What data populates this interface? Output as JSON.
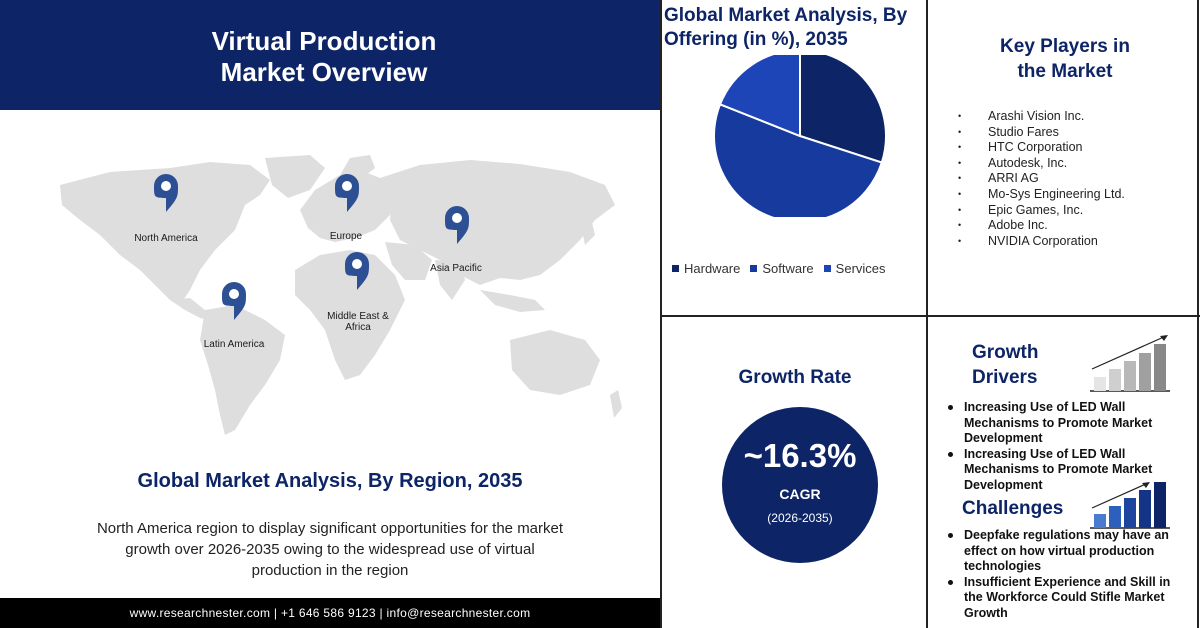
{
  "header": {
    "title_line1": "Virtual Production",
    "title_line2": "Market Overview"
  },
  "map": {
    "pins": [
      {
        "label": "North America"
      },
      {
        "label": "Europe"
      },
      {
        "label": "Asia Pacific"
      },
      {
        "label": "Middle East & Africa"
      },
      {
        "label": "Latin America"
      }
    ]
  },
  "region": {
    "title": "Global Market Analysis, By Region, 2035",
    "description": "North America region to display significant opportunities for the market growth over 2026-2035 owing to the widespread use of virtual production in the region"
  },
  "footer": {
    "text": "www.researchnester.com  |  +1 646 586 9123  |  info@researchnester.com"
  },
  "chart_data": {
    "type": "pie",
    "title": "Global Market Analysis, By Offering (in %), 2035",
    "categories": [
      "Hardware",
      "Software",
      "Services"
    ],
    "values": [
      30,
      51,
      19
    ],
    "colors": [
      "#0d2466",
      "#163a9e",
      "#1d45b8"
    ],
    "legend_position": "bottom"
  },
  "key_players": {
    "title": "Key Players in the Market",
    "items": [
      "Arashi Vision Inc.",
      "Studio Fares",
      "HTC Corporation",
      "Autodesk, Inc.",
      "ARRI AG",
      "Mo-Sys Engineering Ltd.",
      "Epic Games, Inc.",
      "Adobe Inc.",
      "NVIDIA Corporation"
    ]
  },
  "growth_rate": {
    "title": "Growth Rate",
    "value": "~16.3%",
    "label": "CAGR",
    "period": "(2026-2035)"
  },
  "drivers": {
    "title_line1": "Growth",
    "title_line2": "Drivers",
    "icon": "bar-growth-icon",
    "items": [
      "Increasing Use of LED Wall Mechanisms to Promote Market Development",
      "Increasing Use of LED Wall Mechanisms to Promote Market Development"
    ]
  },
  "challenges": {
    "title": "Challenges",
    "icon": "bar-growth-blue-icon",
    "items": [
      "Deepfake regulations may have an effect on how virtual production technologies",
      "Insufficient Experience and Skill in the Workforce Could Stifle Market Growth"
    ]
  },
  "colors": {
    "navy": "#0d2466",
    "footer": "#000000",
    "map": "#e0e0e0"
  }
}
